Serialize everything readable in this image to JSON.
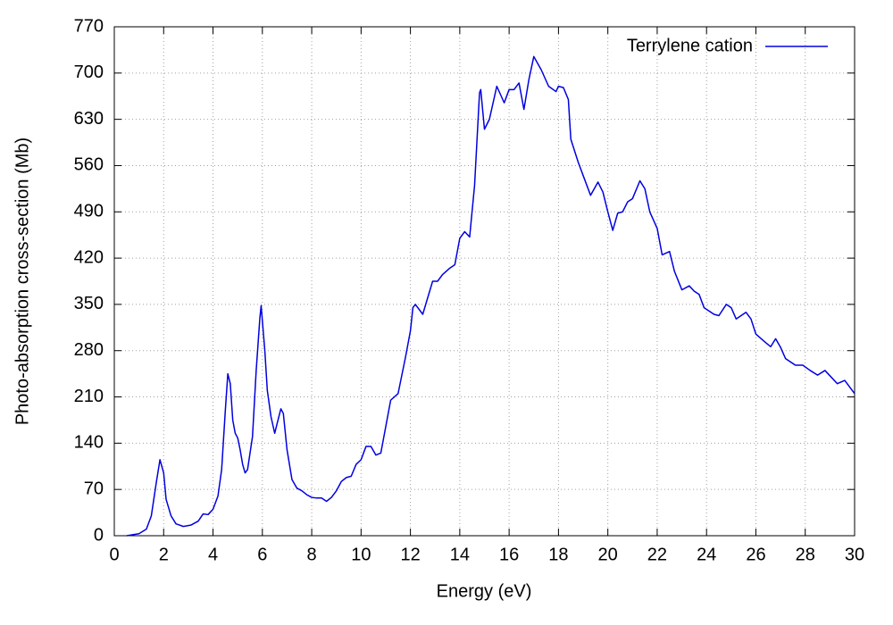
{
  "chart_data": {
    "type": "line",
    "xlabel": "Energy (eV)",
    "ylabel": "Photo-absorption cross-section (Mb)",
    "xlim": [
      0,
      30
    ],
    "ylim": [
      0,
      770
    ],
    "xticks": [
      0,
      2,
      4,
      6,
      8,
      10,
      12,
      14,
      16,
      18,
      20,
      22,
      24,
      26,
      28,
      30
    ],
    "yticks": [
      0,
      70,
      140,
      210,
      280,
      350,
      420,
      490,
      560,
      630,
      700,
      770
    ],
    "grid": true,
    "legend": "top right",
    "series": [
      {
        "name": "Terrylene cation",
        "color": "#0000e0",
        "x": [
          0.5,
          1.0,
          1.3,
          1.5,
          1.7,
          1.85,
          2.0,
          2.1,
          2.3,
          2.5,
          2.8,
          3.1,
          3.4,
          3.6,
          3.8,
          4.0,
          4.2,
          4.35,
          4.5,
          4.6,
          4.7,
          4.8,
          4.9,
          5.0,
          5.1,
          5.2,
          5.3,
          5.4,
          5.6,
          5.75,
          5.9,
          5.95,
          6.1,
          6.2,
          6.35,
          6.5,
          6.6,
          6.75,
          6.85,
          7.0,
          7.2,
          7.4,
          7.6,
          7.8,
          8.0,
          8.2,
          8.4,
          8.6,
          8.8,
          9.0,
          9.2,
          9.4,
          9.6,
          9.8,
          10.0,
          10.2,
          10.4,
          10.6,
          10.8,
          11.0,
          11.2,
          11.5,
          11.8,
          12.0,
          12.1,
          12.2,
          12.5,
          12.9,
          13.1,
          13.3,
          13.6,
          13.8,
          14.0,
          14.2,
          14.4,
          14.6,
          14.8,
          14.85,
          15.0,
          15.2,
          15.5,
          15.8,
          16.0,
          16.2,
          16.4,
          16.6,
          16.8,
          17.0,
          17.3,
          17.6,
          17.9,
          18.0,
          18.2,
          18.4,
          18.5,
          18.8,
          19.0,
          19.3,
          19.6,
          19.8,
          20.0,
          20.2,
          20.4,
          20.6,
          20.8,
          21.0,
          21.3,
          21.5,
          21.7,
          22.0,
          22.2,
          22.5,
          22.7,
          23.0,
          23.3,
          23.5,
          23.7,
          23.9,
          24.3,
          24.5,
          24.8,
          25.0,
          25.2,
          25.6,
          25.8,
          26.0,
          26.4,
          26.6,
          26.8,
          27.0,
          27.2,
          27.6,
          27.9,
          28.2,
          28.5,
          28.8,
          29.1,
          29.3,
          29.6,
          30.0
        ],
        "values": [
          0,
          3,
          10,
          30,
          80,
          115,
          95,
          55,
          30,
          18,
          14,
          16,
          22,
          33,
          32,
          40,
          60,
          100,
          190,
          245,
          230,
          175,
          155,
          148,
          130,
          108,
          95,
          100,
          150,
          250,
          330,
          348,
          280,
          220,
          180,
          155,
          170,
          192,
          185,
          130,
          85,
          72,
          68,
          62,
          58,
          57,
          57,
          52,
          58,
          68,
          82,
          88,
          90,
          108,
          115,
          135,
          135,
          122,
          125,
          165,
          205,
          215,
          270,
          310,
          345,
          350,
          335,
          385,
          385,
          395,
          405,
          410,
          450,
          460,
          452,
          530,
          670,
          675,
          615,
          630,
          680,
          655,
          675,
          675,
          685,
          645,
          690,
          725,
          705,
          680,
          672,
          680,
          678,
          660,
          600,
          565,
          545,
          515,
          535,
          520,
          490,
          462,
          488,
          490,
          505,
          510,
          537,
          525,
          490,
          465,
          425,
          430,
          400,
          372,
          378,
          370,
          365,
          345,
          335,
          333,
          350,
          345,
          328,
          338,
          328,
          305,
          292,
          286,
          298,
          285,
          268,
          258,
          258,
          250,
          243,
          250,
          238,
          230,
          235,
          215
        ]
      }
    ]
  }
}
